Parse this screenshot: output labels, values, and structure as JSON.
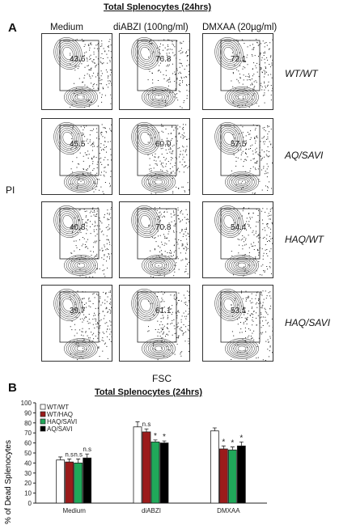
{
  "figure_title": "Total Splenocytes (24hrs)",
  "panel_a": {
    "letter": "A",
    "columns": [
      "Medium",
      "diABZI (100ng/ml)",
      "DMXAA (20µg/ml)"
    ],
    "rows": [
      "WT/WT",
      "AQ/SAVI",
      "HAQ/WT",
      "HAQ/SAVI"
    ],
    "percentages": [
      [
        "43.6",
        "76.8",
        "72.1"
      ],
      [
        "45.5",
        "60.0",
        "57.5"
      ],
      [
        "40.8",
        "70.8",
        "54.4"
      ],
      [
        "39.7",
        "61.1",
        "53.1"
      ]
    ],
    "y_axis": "PI",
    "x_axis": "FSC",
    "flow_colors": {
      "contour": "#555555",
      "dots": "#1a1a1a"
    }
  },
  "panel_b": {
    "letter": "B",
    "title": "Total Splenocytes (24hrs)"
  },
  "chart_data": {
    "type": "bar",
    "title": "Total Splenocytes (24hrs)",
    "xlabel": "",
    "ylabel": "% of Dead Splenocytes",
    "ylim": [
      0,
      100
    ],
    "yticks": [
      "0",
      "10",
      "20",
      "30",
      "40",
      "50",
      "60",
      "70",
      "80",
      "90",
      "100"
    ],
    "grid": false,
    "legend_position": "top-left",
    "categories": [
      "Medium",
      "diABZI",
      "DMXAA"
    ],
    "series": [
      {
        "name": "WT/WT",
        "color": "#ffffff",
        "values": [
          43,
          76,
          72
        ],
        "errors": [
          3,
          5,
          3
        ]
      },
      {
        "name": "WT/HAQ",
        "color": "#9b1b1b",
        "values": [
          41,
          71,
          54
        ],
        "errors": [
          3,
          3,
          3
        ]
      },
      {
        "name": "HAQ/SAVI",
        "color": "#20a85a",
        "values": [
          40,
          61,
          53
        ],
        "errors": [
          4,
          2,
          3
        ]
      },
      {
        "name": "AQ/SAVI",
        "color": "#000000",
        "values": [
          45,
          60,
          57
        ],
        "errors": [
          4,
          2,
          4
        ]
      }
    ],
    "annotations": [
      {
        "category": "Medium",
        "series": "WT/HAQ",
        "text": "n.s"
      },
      {
        "category": "Medium",
        "series": "HAQ/SAVI",
        "text": "n.s"
      },
      {
        "category": "Medium",
        "series": "AQ/SAVI",
        "text": "n.s"
      },
      {
        "category": "diABZI",
        "series": "WT/HAQ",
        "text": "n.s"
      },
      {
        "category": "diABZI",
        "series": "HAQ/SAVI",
        "text": "*"
      },
      {
        "category": "diABZI",
        "series": "AQ/SAVI",
        "text": "*"
      },
      {
        "category": "DMXAA",
        "series": "WT/HAQ",
        "text": "*"
      },
      {
        "category": "DMXAA",
        "series": "HAQ/SAVI",
        "text": "*"
      },
      {
        "category": "DMXAA",
        "series": "AQ/SAVI",
        "text": "*"
      }
    ]
  }
}
